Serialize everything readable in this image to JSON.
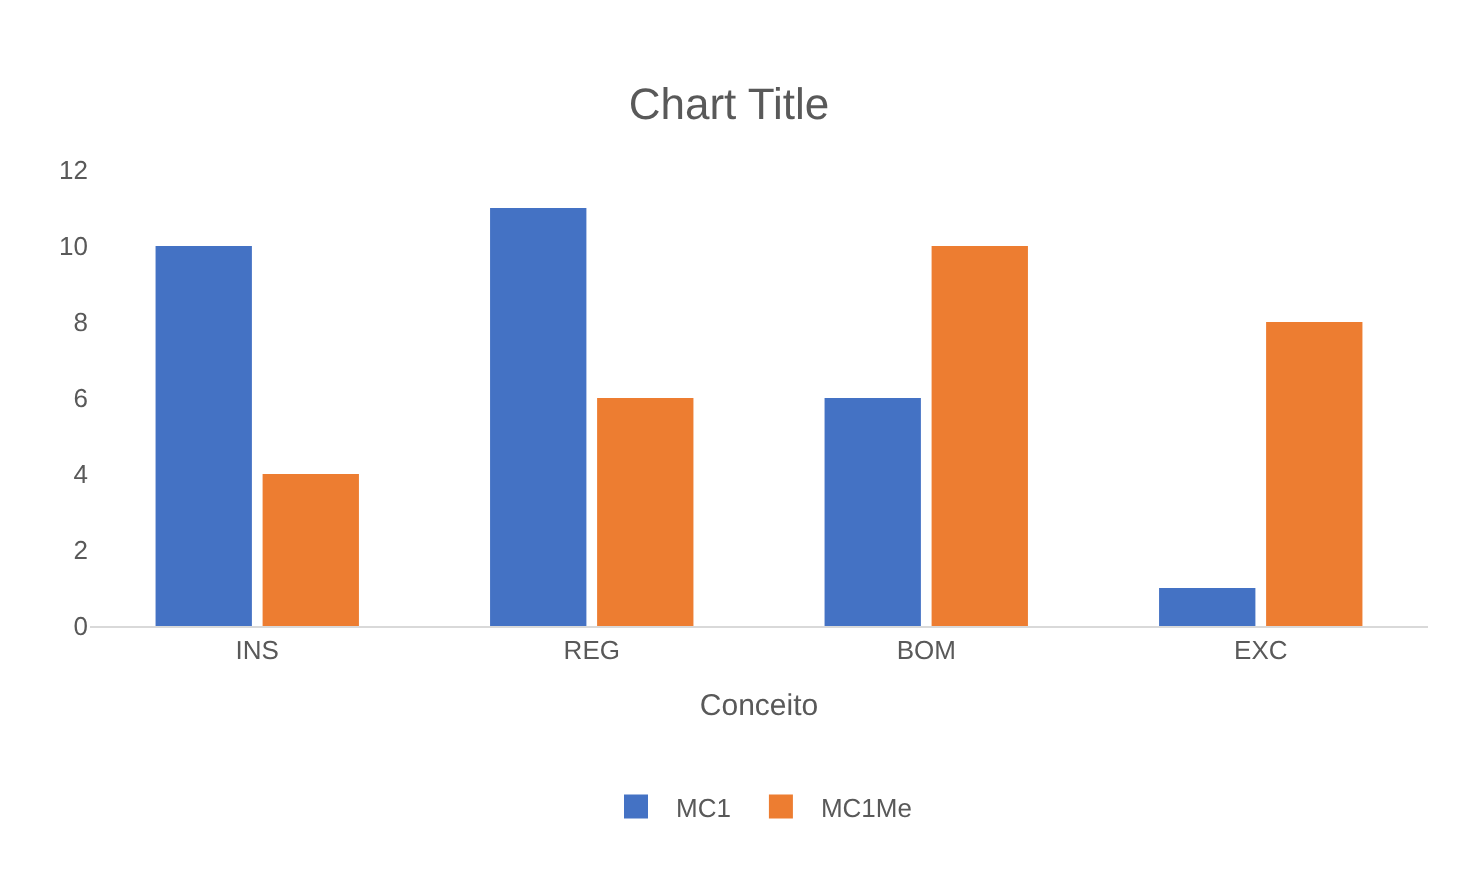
{
  "chart_data": {
    "type": "bar",
    "title": "Chart Title",
    "xlabel": "Conceito",
    "categories": [
      "INS",
      "REG",
      "BOM",
      "EXC"
    ],
    "series": [
      {
        "name": "MC1",
        "color": "#4472c4",
        "values": [
          10,
          11,
          6,
          1
        ]
      },
      {
        "name": "MC1Me",
        "color": "#ed7d31",
        "values": [
          4,
          6,
          10,
          8
        ]
      }
    ],
    "ylim": [
      0,
      12
    ],
    "yticks": [
      0,
      2,
      4,
      6,
      8,
      10,
      12
    ],
    "grid": false,
    "legend": "bottom"
  }
}
